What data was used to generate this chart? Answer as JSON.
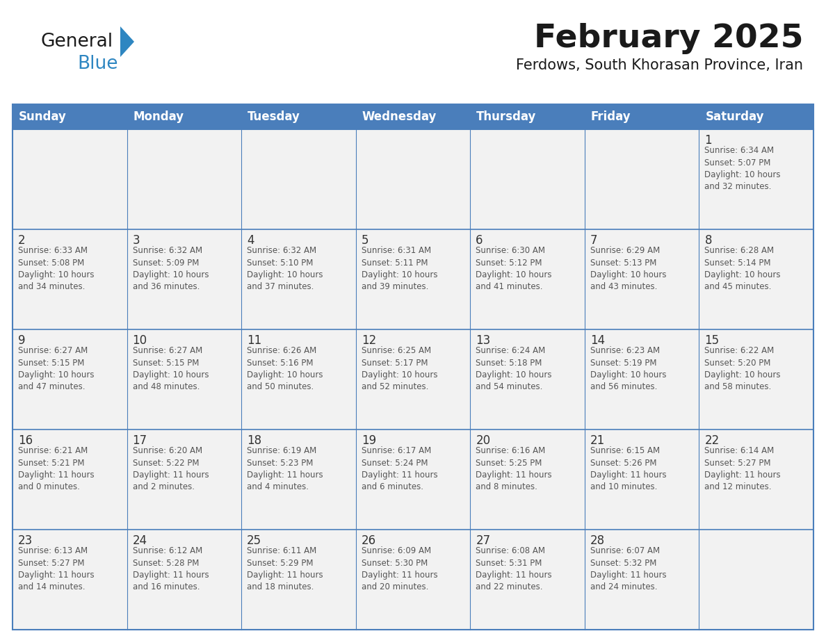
{
  "title": "February 2025",
  "subtitle": "Ferdows, South Khorasan Province, Iran",
  "days_of_week": [
    "Sunday",
    "Monday",
    "Tuesday",
    "Wednesday",
    "Thursday",
    "Friday",
    "Saturday"
  ],
  "header_bg": "#4A7EBB",
  "header_text": "#FFFFFF",
  "cell_bg_odd": "#F2F2F2",
  "cell_bg_even": "#FFFFFF",
  "border_color": "#4A7EBB",
  "title_color": "#1A1A1A",
  "subtitle_color": "#1A1A1A",
  "text_color": "#555555",
  "day_number_color": "#333333",
  "logo_general_color": "#1A1A1A",
  "logo_blue_color": "#2E86C1",
  "calendar": [
    [
      {
        "day": "",
        "info": ""
      },
      {
        "day": "",
        "info": ""
      },
      {
        "day": "",
        "info": ""
      },
      {
        "day": "",
        "info": ""
      },
      {
        "day": "",
        "info": ""
      },
      {
        "day": "",
        "info": ""
      },
      {
        "day": "1",
        "info": "Sunrise: 6:34 AM\nSunset: 5:07 PM\nDaylight: 10 hours\nand 32 minutes."
      }
    ],
    [
      {
        "day": "2",
        "info": "Sunrise: 6:33 AM\nSunset: 5:08 PM\nDaylight: 10 hours\nand 34 minutes."
      },
      {
        "day": "3",
        "info": "Sunrise: 6:32 AM\nSunset: 5:09 PM\nDaylight: 10 hours\nand 36 minutes."
      },
      {
        "day": "4",
        "info": "Sunrise: 6:32 AM\nSunset: 5:10 PM\nDaylight: 10 hours\nand 37 minutes."
      },
      {
        "day": "5",
        "info": "Sunrise: 6:31 AM\nSunset: 5:11 PM\nDaylight: 10 hours\nand 39 minutes."
      },
      {
        "day": "6",
        "info": "Sunrise: 6:30 AM\nSunset: 5:12 PM\nDaylight: 10 hours\nand 41 minutes."
      },
      {
        "day": "7",
        "info": "Sunrise: 6:29 AM\nSunset: 5:13 PM\nDaylight: 10 hours\nand 43 minutes."
      },
      {
        "day": "8",
        "info": "Sunrise: 6:28 AM\nSunset: 5:14 PM\nDaylight: 10 hours\nand 45 minutes."
      }
    ],
    [
      {
        "day": "9",
        "info": "Sunrise: 6:27 AM\nSunset: 5:15 PM\nDaylight: 10 hours\nand 47 minutes."
      },
      {
        "day": "10",
        "info": "Sunrise: 6:27 AM\nSunset: 5:15 PM\nDaylight: 10 hours\nand 48 minutes."
      },
      {
        "day": "11",
        "info": "Sunrise: 6:26 AM\nSunset: 5:16 PM\nDaylight: 10 hours\nand 50 minutes."
      },
      {
        "day": "12",
        "info": "Sunrise: 6:25 AM\nSunset: 5:17 PM\nDaylight: 10 hours\nand 52 minutes."
      },
      {
        "day": "13",
        "info": "Sunrise: 6:24 AM\nSunset: 5:18 PM\nDaylight: 10 hours\nand 54 minutes."
      },
      {
        "day": "14",
        "info": "Sunrise: 6:23 AM\nSunset: 5:19 PM\nDaylight: 10 hours\nand 56 minutes."
      },
      {
        "day": "15",
        "info": "Sunrise: 6:22 AM\nSunset: 5:20 PM\nDaylight: 10 hours\nand 58 minutes."
      }
    ],
    [
      {
        "day": "16",
        "info": "Sunrise: 6:21 AM\nSunset: 5:21 PM\nDaylight: 11 hours\nand 0 minutes."
      },
      {
        "day": "17",
        "info": "Sunrise: 6:20 AM\nSunset: 5:22 PM\nDaylight: 11 hours\nand 2 minutes."
      },
      {
        "day": "18",
        "info": "Sunrise: 6:19 AM\nSunset: 5:23 PM\nDaylight: 11 hours\nand 4 minutes."
      },
      {
        "day": "19",
        "info": "Sunrise: 6:17 AM\nSunset: 5:24 PM\nDaylight: 11 hours\nand 6 minutes."
      },
      {
        "day": "20",
        "info": "Sunrise: 6:16 AM\nSunset: 5:25 PM\nDaylight: 11 hours\nand 8 minutes."
      },
      {
        "day": "21",
        "info": "Sunrise: 6:15 AM\nSunset: 5:26 PM\nDaylight: 11 hours\nand 10 minutes."
      },
      {
        "day": "22",
        "info": "Sunrise: 6:14 AM\nSunset: 5:27 PM\nDaylight: 11 hours\nand 12 minutes."
      }
    ],
    [
      {
        "day": "23",
        "info": "Sunrise: 6:13 AM\nSunset: 5:27 PM\nDaylight: 11 hours\nand 14 minutes."
      },
      {
        "day": "24",
        "info": "Sunrise: 6:12 AM\nSunset: 5:28 PM\nDaylight: 11 hours\nand 16 minutes."
      },
      {
        "day": "25",
        "info": "Sunrise: 6:11 AM\nSunset: 5:29 PM\nDaylight: 11 hours\nand 18 minutes."
      },
      {
        "day": "26",
        "info": "Sunrise: 6:09 AM\nSunset: 5:30 PM\nDaylight: 11 hours\nand 20 minutes."
      },
      {
        "day": "27",
        "info": "Sunrise: 6:08 AM\nSunset: 5:31 PM\nDaylight: 11 hours\nand 22 minutes."
      },
      {
        "day": "28",
        "info": "Sunrise: 6:07 AM\nSunset: 5:32 PM\nDaylight: 11 hours\nand 24 minutes."
      },
      {
        "day": "",
        "info": ""
      }
    ]
  ]
}
